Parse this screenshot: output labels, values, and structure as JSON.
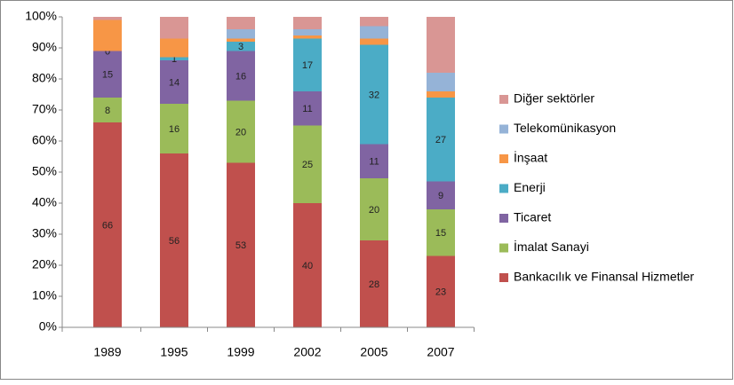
{
  "chart_data": {
    "type": "stacked_bar_percent",
    "categories": [
      "1989",
      "1995",
      "1999",
      "2002",
      "2005",
      "2007"
    ],
    "series": [
      {
        "name": "Bankacılık ve Finansal Hizmetler",
        "color": "#c0504d",
        "values": [
          66,
          56,
          53,
          40,
          28,
          23
        ],
        "data_labels": true
      },
      {
        "name": "İmalat Sanayi",
        "color": "#9bbb59",
        "values": [
          8,
          16,
          20,
          25,
          20,
          15
        ],
        "data_labels": true
      },
      {
        "name": "Ticaret",
        "color": "#8064a2",
        "values": [
          15,
          14,
          16,
          11,
          11,
          9
        ],
        "data_labels": true
      },
      {
        "name": "Enerji",
        "color": "#4bacc6",
        "values": [
          0,
          1,
          3,
          17,
          32,
          27
        ],
        "data_labels": true
      },
      {
        "name": "İnşaat",
        "color": "#f79646",
        "values": [
          10,
          6,
          1,
          1,
          2,
          2
        ],
        "data_labels": false
      },
      {
        "name": "Telekomünikasyon",
        "color": "#95b3d7",
        "values": [
          0,
          0,
          3,
          2,
          4,
          6
        ],
        "data_labels": false
      },
      {
        "name": "Diğer sektörler",
        "color": "#d99694",
        "values": [
          1,
          7,
          4,
          4,
          3,
          18
        ],
        "data_labels": false
      }
    ],
    "ylim": [
      0,
      100
    ],
    "yticks": [
      {
        "value": 0,
        "label": "0%"
      },
      {
        "value": 10,
        "label": "10%"
      },
      {
        "value": 20,
        "label": "20%"
      },
      {
        "value": 30,
        "label": "30%"
      },
      {
        "value": 40,
        "label": "40%"
      },
      {
        "value": 50,
        "label": "50%"
      },
      {
        "value": 60,
        "label": "60%"
      },
      {
        "value": 70,
        "label": "70%"
      },
      {
        "value": 80,
        "label": "80%"
      },
      {
        "value": 90,
        "label": "90%"
      },
      {
        "value": 100,
        "label": "100%"
      }
    ],
    "grid": false,
    "legend": "right"
  }
}
